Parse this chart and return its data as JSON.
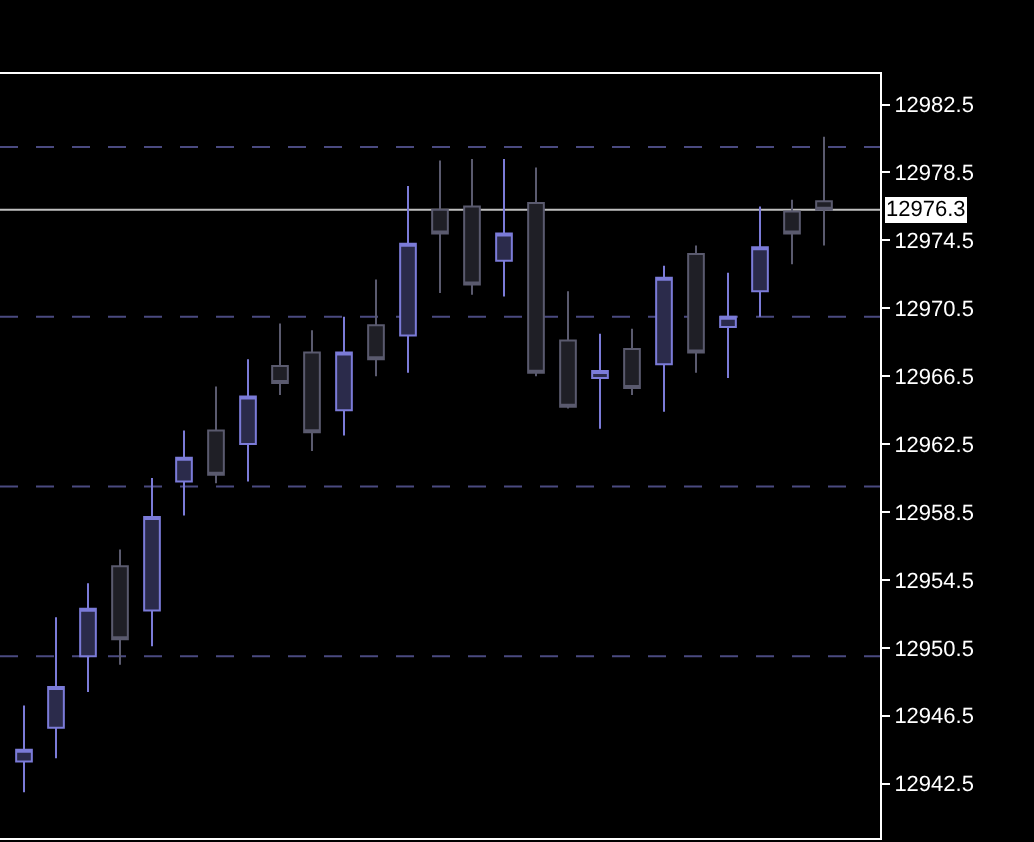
{
  "chart_data": {
    "type": "candlestick",
    "categories": [
      null,
      null,
      null,
      null,
      null,
      null,
      null,
      null,
      null,
      null,
      null,
      null,
      null,
      null,
      null,
      null,
      null,
      null,
      null,
      null,
      null,
      null,
      null,
      null,
      null,
      null
    ],
    "ohlc": [
      [
        12943.8,
        12947.1,
        12942.0,
        12944.5
      ],
      [
        12945.8,
        12952.3,
        12944.0,
        12948.2
      ],
      [
        12950.0,
        12954.3,
        12947.9,
        12952.8
      ],
      [
        12955.3,
        12956.3,
        12949.5,
        12951.0
      ],
      [
        12952.7,
        12960.5,
        12950.6,
        12958.2
      ],
      [
        12960.3,
        12963.3,
        12958.3,
        12961.7
      ],
      [
        12963.3,
        12965.9,
        12960.2,
        12960.7
      ],
      [
        12962.5,
        12967.5,
        12960.3,
        12965.3
      ],
      [
        12967.1,
        12969.6,
        12965.4,
        12966.1
      ],
      [
        12967.9,
        12969.2,
        12962.1,
        12963.2
      ],
      [
        12964.5,
        12970.0,
        12963.0,
        12967.9
      ],
      [
        12969.5,
        12972.2,
        12966.5,
        12967.5
      ],
      [
        12968.9,
        12977.7,
        12966.7,
        12974.3
      ],
      [
        12976.3,
        12979.2,
        12971.4,
        12974.9
      ],
      [
        12976.5,
        12979.3,
        12971.3,
        12971.9
      ],
      [
        12973.3,
        12979.3,
        12971.2,
        12974.9
      ],
      [
        12976.7,
        12978.8,
        12966.5,
        12966.7
      ],
      [
        12968.6,
        12971.5,
        12964.6,
        12964.7
      ],
      [
        12966.4,
        12969.0,
        12963.4,
        12966.8
      ],
      [
        12968.1,
        12969.3,
        12965.4,
        12965.8
      ],
      [
        12967.2,
        12973.0,
        12964.4,
        12972.3
      ],
      [
        12973.7,
        12974.2,
        12966.7,
        12967.9
      ],
      [
        12969.4,
        12972.6,
        12966.4,
        12970.0
      ],
      [
        12971.5,
        12976.5,
        12970.0,
        12974.1
      ],
      [
        12976.2,
        12976.9,
        12973.1,
        12974.9
      ],
      [
        12976.8,
        12980.6,
        12974.2,
        12976.3
      ]
    ],
    "colors": [
      "#7b7bd8",
      "#7b7bd8",
      "#7b7bd8",
      "#5a5a6e",
      "#7b7bd8",
      "#7b7bd8",
      "#5a5a6e",
      "#7b7bd8",
      "#5a5a6e",
      "#5a5a6e",
      "#7b7bd8",
      "#5a5a6e",
      "#7b7bd8",
      "#5a5a6e",
      "#5a5a6e",
      "#7b7bd8",
      "#5a5a6e",
      "#5a5a6e",
      "#7b7bd8",
      "#5a5a6e",
      "#7b7bd8",
      "#5a5a6e",
      "#7b7bd8",
      "#7b7bd8",
      "#5a5a6e",
      "#5a5a6e"
    ],
    "ylim": [
      12939.3,
      12984.3
    ],
    "yticks": [
      12942.5,
      12946.5,
      12950.5,
      12954.5,
      12958.5,
      12962.5,
      12966.5,
      12970.5,
      12974.5,
      12978.5,
      12982.5
    ],
    "ref_lines": [
      {
        "axis": "y",
        "value": 12950,
        "color": "#4a4a80",
        "line_style": "dashed"
      },
      {
        "axis": "y",
        "value": 12960,
        "color": "#4a4a80",
        "line_style": "dashed"
      },
      {
        "axis": "y",
        "value": 12970,
        "color": "#4a4a80",
        "line_style": "dashed"
      },
      {
        "axis": "y",
        "value": 12980,
        "color": "#4a4a80",
        "line_style": "dashed"
      },
      {
        "axis": "y",
        "value": 12976.3,
        "label": "12976.3",
        "color": "#c0c0c0",
        "line_style": "solid"
      }
    ]
  }
}
